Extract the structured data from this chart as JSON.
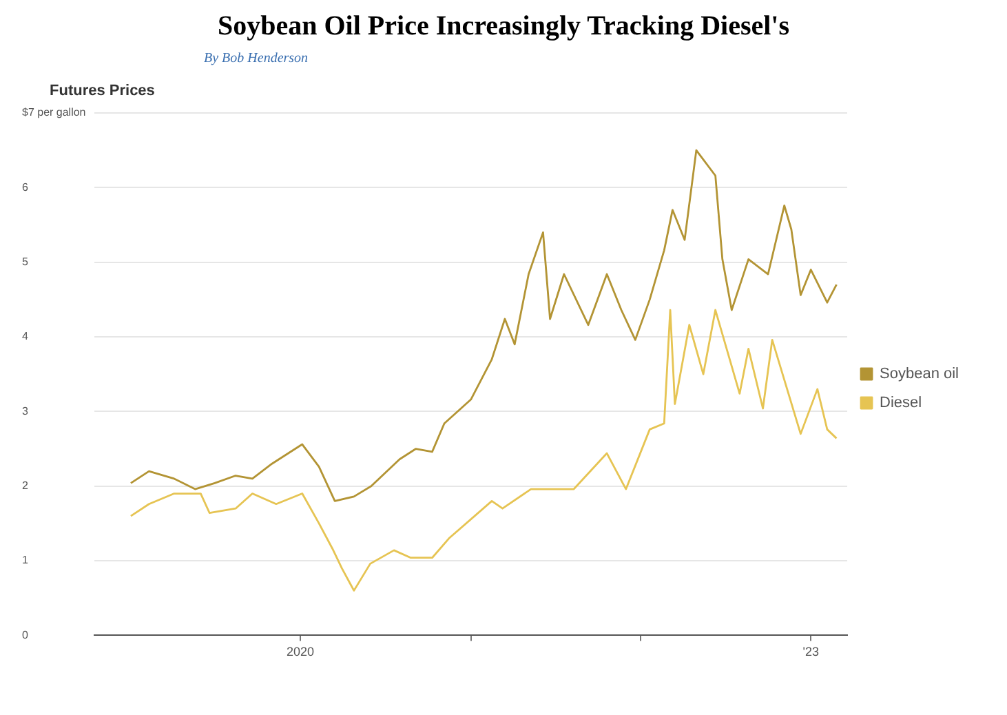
{
  "chart_data": {
    "type": "line",
    "title": "Soybean Oil Price Increasingly Tracking Diesel's",
    "subtitle": "By Bob Henderson",
    "ylabel": "Futures Prices",
    "xlim": [
      "2018-10-15",
      "2023-03-20"
    ],
    "xticks": [
      {
        "value": "2020-01-01",
        "label": "2020"
      },
      {
        "value": "2021-01-01",
        "label": null
      },
      {
        "value": "2022-01-01",
        "label": null
      },
      {
        "value": "2023-01-01",
        "label": "'23"
      }
    ],
    "ylim": [
      0,
      7
    ],
    "yticks": [
      0,
      1,
      2,
      3,
      4,
      5,
      6,
      {
        "value": 7,
        "label": "$7 per gallon"
      }
    ],
    "grid": "y",
    "legend": "right",
    "line_style": "solid",
    "marker": "none",
    "series": [
      {
        "name": "Soybean oil",
        "color": "#b39434",
        "x": [
          "2019-01-02",
          "2019-02-10",
          "2019-04-05",
          "2019-05-20",
          "2019-07-01",
          "2019-08-15",
          "2019-09-20",
          "2019-11-01",
          "2020-01-05",
          "2020-02-10",
          "2020-03-15",
          "2020-04-25",
          "2020-06-01",
          "2020-08-01",
          "2020-09-05",
          "2020-10-10",
          "2020-11-05",
          "2021-01-01",
          "2021-02-15",
          "2021-03-15",
          "2021-04-05",
          "2021-05-05",
          "2021-06-05",
          "2021-06-20",
          "2021-07-20",
          "2021-09-10",
          "2021-10-20",
          "2021-11-20",
          "2021-12-20",
          "2022-01-20",
          "2022-02-20",
          "2022-03-10",
          "2022-04-05",
          "2022-04-30",
          "2022-06-10",
          "2022-06-25",
          "2022-07-15",
          "2022-08-20",
          "2022-10-01",
          "2022-11-05",
          "2022-11-20",
          "2022-12-10",
          "2023-01-01",
          "2023-02-05",
          "2023-02-25"
        ],
        "values": [
          2.04,
          2.2,
          2.1,
          1.96,
          2.04,
          2.14,
          2.1,
          2.3,
          2.56,
          2.26,
          1.8,
          1.86,
          2.0,
          2.36,
          2.5,
          2.46,
          2.84,
          3.16,
          3.7,
          4.24,
          3.9,
          4.84,
          5.4,
          4.24,
          4.84,
          4.16,
          4.84,
          4.36,
          3.96,
          4.5,
          5.16,
          5.7,
          5.3,
          6.5,
          6.16,
          5.04,
          4.36,
          5.04,
          4.84,
          5.76,
          5.44,
          4.56,
          4.9,
          4.46,
          4.7
        ]
      },
      {
        "name": "Diesel",
        "color": "#e6c453",
        "x": [
          "2019-01-02",
          "2019-02-10",
          "2019-04-05",
          "2019-06-01",
          "2019-06-20",
          "2019-08-15",
          "2019-09-20",
          "2019-11-10",
          "2020-01-05",
          "2020-02-10",
          "2020-03-10",
          "2020-03-30",
          "2020-04-25",
          "2020-05-30",
          "2020-07-20",
          "2020-08-25",
          "2020-10-10",
          "2020-11-15",
          "2021-02-15",
          "2021-03-10",
          "2021-05-10",
          "2021-08-10",
          "2021-10-20",
          "2021-11-30",
          "2022-01-20",
          "2022-02-20",
          "2022-03-05",
          "2022-03-15",
          "2022-04-15",
          "2022-05-15",
          "2022-06-10",
          "2022-08-01",
          "2022-08-20",
          "2022-09-20",
          "2022-10-10",
          "2022-12-10",
          "2023-01-15",
          "2023-02-05",
          "2023-02-25"
        ],
        "values": [
          1.6,
          1.76,
          1.9,
          1.9,
          1.64,
          1.7,
          1.9,
          1.76,
          1.9,
          1.5,
          1.16,
          0.9,
          0.6,
          0.96,
          1.14,
          1.04,
          1.04,
          1.3,
          1.8,
          1.7,
          1.96,
          1.96,
          2.44,
          1.96,
          2.76,
          2.84,
          4.36,
          3.1,
          4.16,
          3.5,
          4.36,
          3.24,
          3.84,
          3.04,
          3.96,
          2.7,
          3.3,
          2.76,
          2.64
        ]
      }
    ]
  }
}
